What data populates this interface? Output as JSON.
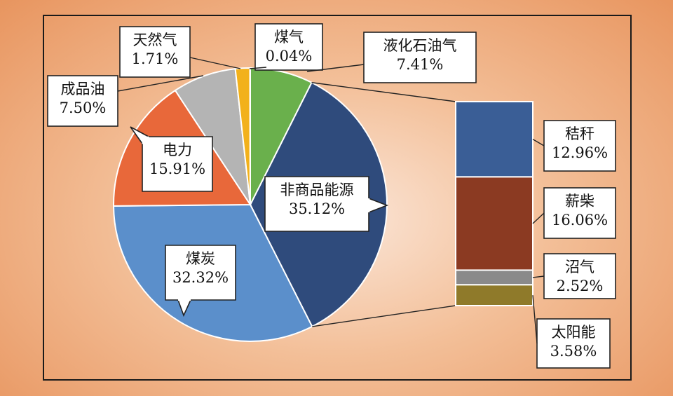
{
  "chart_data": [
    {
      "type": "pie",
      "series": [
        {
          "slices": [
            {
              "label": "非商品能源",
              "value": 35.12,
              "value_text": "35.12%",
              "color": "#2f4b7c"
            },
            {
              "label": "煤炭",
              "value": 32.32,
              "value_text": "32.32%",
              "color": "#5b8fcb"
            },
            {
              "label": "电力",
              "value": 15.91,
              "value_text": "15.91%",
              "color": "#e8683a"
            },
            {
              "label": "成品油",
              "value": 7.5,
              "value_text": "7.50%",
              "color": "#b4b4b4"
            },
            {
              "label": "天然气",
              "value": 1.71,
              "value_text": "1.71%",
              "color": "#f2b11b"
            },
            {
              "label": "煤气",
              "value": 0.04,
              "value_text": "0.04%",
              "color": "#7a7a7a"
            },
            {
              "label": "液化石油气",
              "value": 7.41,
              "value_text": "7.41%",
              "color": "#6ab04c"
            }
          ]
        }
      ]
    },
    {
      "type": "bar",
      "stacked": true,
      "parent": "非商品能源",
      "series": [
        {
          "segments": [
            {
              "label": "秸秆",
              "value": 12.96,
              "value_text": "12.96%",
              "color": "#3a5e96"
            },
            {
              "label": "薪柴",
              "value": 16.06,
              "value_text": "16.06%",
              "color": "#8b3a22"
            },
            {
              "label": "沼气",
              "value": 2.52,
              "value_text": "2.52%",
              "color": "#8a8a8a"
            },
            {
              "label": "太阳能",
              "value": 3.58,
              "value_text": "3.58%",
              "color": "#8f7a2a"
            }
          ]
        }
      ]
    }
  ]
}
